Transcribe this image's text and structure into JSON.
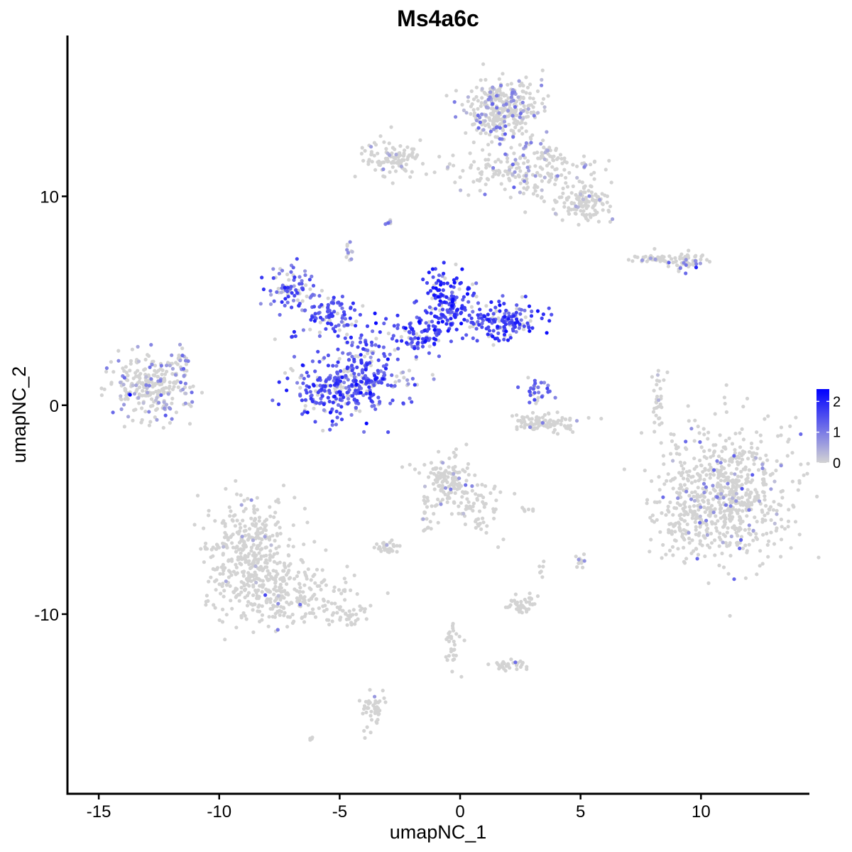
{
  "chart_data": {
    "type": "scatter",
    "title": "Ms4a6c",
    "xlabel": "umapNC_1",
    "ylabel": "umapNC_2",
    "xlim": [
      -16.3,
      14.5
    ],
    "ylim": [
      -18.6,
      17.7
    ],
    "x_ticks": [
      -15,
      -10,
      -5,
      0,
      5,
      10
    ],
    "x_tick_labels": [
      "-15",
      "-10",
      "-5",
      "0",
      "5",
      "10"
    ],
    "y_ticks": [
      -10,
      0,
      10
    ],
    "y_tick_labels": [
      "-10",
      "0",
      "10"
    ],
    "grid": false,
    "color_scale": {
      "low_color": "#D3D3D3",
      "high_color": "#0000FF",
      "min": 0,
      "max": 2.4,
      "breaks": [
        0,
        1,
        2
      ],
      "break_labels": [
        "0",
        "1",
        "2"
      ],
      "placement": "right"
    },
    "clusters": [
      {
        "cx": -12.8,
        "cy": 0.9,
        "sx": 0.85,
        "sy": 0.75,
        "n": 260,
        "expr_prob": 0.25,
        "expr_mean": 0.7
      },
      {
        "cx": -11.6,
        "cy": 2.2,
        "sx": 0.2,
        "sy": 0.45,
        "n": 20,
        "expr_prob": 0.5,
        "expr_mean": 0.8
      },
      {
        "cx": 1.8,
        "cy": 14.2,
        "sx": 0.75,
        "sy": 0.7,
        "n": 340,
        "expr_prob": 0.18,
        "expr_mean": 0.7
      },
      {
        "cx": 3.3,
        "cy": 11.3,
        "sx": 1.2,
        "sy": 0.7,
        "n": 180,
        "expr_prob": 0.12,
        "expr_mean": 0.6
      },
      {
        "cx": 5.1,
        "cy": 9.7,
        "sx": 0.7,
        "sy": 0.45,
        "n": 120,
        "expr_prob": 0.04,
        "expr_mean": 0.5
      },
      {
        "cx": -2.8,
        "cy": 11.8,
        "sx": 0.7,
        "sy": 0.4,
        "n": 110,
        "expr_prob": 0.1,
        "expr_mean": 0.7
      },
      {
        "cx": 0.8,
        "cy": 11.2,
        "sx": 0.7,
        "sy": 0.4,
        "n": 45,
        "expr_prob": 0.08,
        "expr_mean": 0.6
      },
      {
        "cx": -3.0,
        "cy": 8.7,
        "sx": 0.12,
        "sy": 0.12,
        "n": 8,
        "expr_prob": 0.5,
        "expr_mean": 0.6
      },
      {
        "cx": -4.6,
        "cy": 7.3,
        "sx": 0.12,
        "sy": 0.22,
        "n": 12,
        "expr_prob": 0.5,
        "expr_mean": 0.6
      },
      {
        "cx": -7.0,
        "cy": 5.5,
        "sx": 0.55,
        "sy": 0.55,
        "n": 90,
        "expr_prob": 0.75,
        "expr_mean": 1.3
      },
      {
        "cx": -5.4,
        "cy": 4.2,
        "sx": 0.6,
        "sy": 0.45,
        "n": 90,
        "expr_prob": 0.8,
        "expr_mean": 1.4
      },
      {
        "cx": -5.1,
        "cy": 0.8,
        "sx": 1.0,
        "sy": 0.8,
        "n": 280,
        "expr_prob": 0.78,
        "expr_mean": 1.4
      },
      {
        "cx": -3.8,
        "cy": 2.0,
        "sx": 0.5,
        "sy": 0.8,
        "n": 80,
        "expr_prob": 0.75,
        "expr_mean": 1.5
      },
      {
        "cx": -2.0,
        "cy": 3.3,
        "sx": 0.8,
        "sy": 0.5,
        "n": 90,
        "expr_prob": 0.85,
        "expr_mean": 1.6
      },
      {
        "cx": -0.5,
        "cy": 5.0,
        "sx": 0.55,
        "sy": 0.8,
        "n": 150,
        "expr_prob": 0.85,
        "expr_mean": 1.7
      },
      {
        "cx": 1.8,
        "cy": 4.1,
        "sx": 0.8,
        "sy": 0.45,
        "n": 150,
        "expr_prob": 0.85,
        "expr_mean": 1.6
      },
      {
        "cx": 3.2,
        "cy": 0.6,
        "sx": 0.3,
        "sy": 0.4,
        "n": 30,
        "expr_prob": 0.75,
        "expr_mean": 1.2
      },
      {
        "cx": 3.6,
        "cy": -0.9,
        "sx": 0.8,
        "sy": 0.25,
        "n": 90,
        "expr_prob": 0.04,
        "expr_mean": 0.5
      },
      {
        "cx": -2.0,
        "cy": 1.2,
        "sx": 0.5,
        "sy": 0.25,
        "n": 15,
        "expr_prob": 0.3,
        "expr_mean": 0.7
      },
      {
        "cx": 8.1,
        "cy": 7.0,
        "sx": 0.55,
        "sy": 0.12,
        "n": 45,
        "expr_prob": 0.05,
        "expr_mean": 0.6
      },
      {
        "cx": 9.4,
        "cy": 6.9,
        "sx": 0.4,
        "sy": 0.2,
        "n": 50,
        "expr_prob": 0.1,
        "expr_mean": 0.8
      },
      {
        "cx": 8.2,
        "cy": 0.2,
        "sx": 0.15,
        "sy": 0.75,
        "n": 30,
        "expr_prob": 0.1,
        "expr_mean": 0.6
      },
      {
        "cx": 11.2,
        "cy": -4.2,
        "sx": 1.35,
        "sy": 1.55,
        "n": 650,
        "expr_prob": 0.08,
        "expr_mean": 0.75
      },
      {
        "cx": 9.1,
        "cy": -5.5,
        "sx": 0.6,
        "sy": 0.8,
        "n": 90,
        "expr_prob": 0.06,
        "expr_mean": 0.7
      },
      {
        "cx": -8.7,
        "cy": -7.2,
        "sx": 0.9,
        "sy": 1.3,
        "n": 400,
        "expr_prob": 0.03,
        "expr_mean": 0.5
      },
      {
        "cx": -7.1,
        "cy": -9.1,
        "sx": 1.5,
        "sy": 0.7,
        "n": 220,
        "expr_prob": 0.02,
        "expr_mean": 0.5
      },
      {
        "cx": -4.8,
        "cy": -10.1,
        "sx": 0.6,
        "sy": 0.25,
        "n": 35,
        "expr_prob": 0.02,
        "expr_mean": 0.5
      },
      {
        "cx": -0.6,
        "cy": -3.5,
        "sx": 0.45,
        "sy": 0.6,
        "n": 120,
        "expr_prob": 0.05,
        "expr_mean": 0.6
      },
      {
        "cx": 0.7,
        "cy": -4.9,
        "sx": 0.5,
        "sy": 0.7,
        "n": 70,
        "expr_prob": 0.05,
        "expr_mean": 0.6
      },
      {
        "cx": -1.3,
        "cy": -5.3,
        "sx": 0.2,
        "sy": 0.5,
        "n": 20,
        "expr_prob": 0.03,
        "expr_mean": 0.5
      },
      {
        "cx": -3.0,
        "cy": -6.8,
        "sx": 0.3,
        "sy": 0.15,
        "n": 30,
        "expr_prob": 0.02,
        "expr_mean": 0.5
      },
      {
        "cx": 2.6,
        "cy": -9.5,
        "sx": 0.35,
        "sy": 0.25,
        "n": 40,
        "expr_prob": 0.03,
        "expr_mean": 0.5
      },
      {
        "cx": 2.1,
        "cy": -12.4,
        "sx": 0.35,
        "sy": 0.15,
        "n": 30,
        "expr_prob": 0.01,
        "expr_mean": 0.5
      },
      {
        "cx": -0.3,
        "cy": -11.4,
        "sx": 0.25,
        "sy": 0.6,
        "n": 30,
        "expr_prob": 0.01,
        "expr_mean": 0.5
      },
      {
        "cx": 5.0,
        "cy": -7.5,
        "sx": 0.1,
        "sy": 0.25,
        "n": 12,
        "expr_prob": 0.1,
        "expr_mean": 0.6
      },
      {
        "cx": 3.4,
        "cy": -7.9,
        "sx": 0.08,
        "sy": 0.25,
        "n": 6,
        "expr_prob": 0.0,
        "expr_mean": 0.5
      },
      {
        "cx": 2.7,
        "cy": -5.0,
        "sx": 0.2,
        "sy": 0.07,
        "n": 6,
        "expr_prob": 0.0,
        "expr_mean": 0.5
      },
      {
        "cx": -3.6,
        "cy": -14.6,
        "sx": 0.25,
        "sy": 0.6,
        "n": 45,
        "expr_prob": 0.03,
        "expr_mean": 0.5
      },
      {
        "cx": -6.2,
        "cy": -16.0,
        "sx": 0.08,
        "sy": 0.08,
        "n": 4,
        "expr_prob": 0.0,
        "expr_mean": 0.5
      }
    ],
    "highlights": [
      {
        "x": -13.7,
        "y": 0.5,
        "v": 2.4
      },
      {
        "x": -1.0,
        "y": 5.6,
        "v": 2.3
      },
      {
        "x": -1.7,
        "y": 4.0,
        "v": 2.3
      },
      {
        "x": -4.3,
        "y": 1.0,
        "v": 2.3
      },
      {
        "x": -3.0,
        "y": 2.2,
        "v": 2.2
      },
      {
        "x": 9.8,
        "y": 6.6,
        "v": 2.0
      }
    ]
  }
}
